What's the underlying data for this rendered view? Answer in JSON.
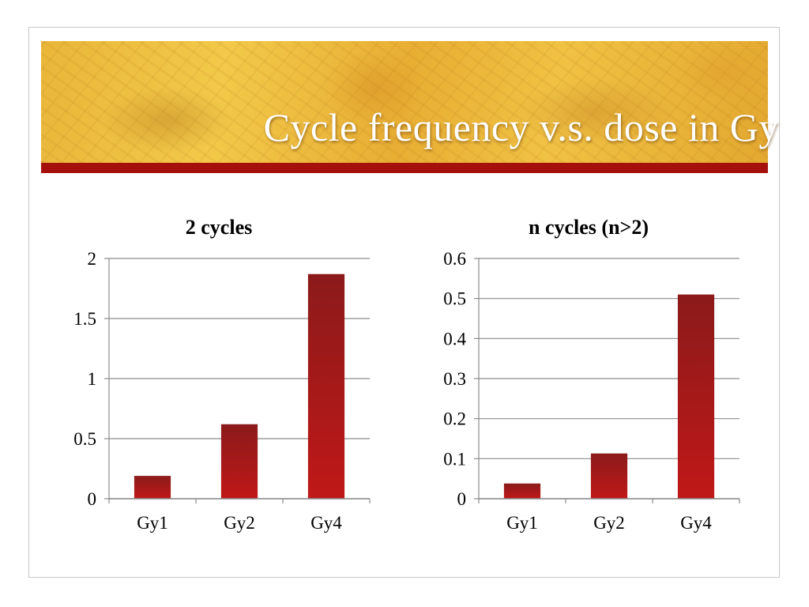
{
  "slide": {
    "title": "Cycle frequency v.s. dose in Gy"
  },
  "colors": {
    "bar_top": "#8b1a1a",
    "bar_bottom": "#c01818",
    "banner_bar": "#a6100c",
    "grid": "#8c8c8c"
  },
  "chart_data": [
    {
      "type": "bar",
      "title": "2 cycles",
      "categories": [
        "Gy1",
        "Gy2",
        "Gy4"
      ],
      "values": [
        0.19,
        0.62,
        1.87
      ],
      "ylim": [
        0,
        2
      ],
      "yticks": [
        0,
        0.5,
        1,
        1.5,
        2
      ],
      "ytick_labels": [
        "0",
        "0.5",
        "1",
        "1.5",
        "2"
      ],
      "grid": true,
      "legend": "none"
    },
    {
      "type": "bar",
      "title": "n cycles (n>2)",
      "categories": [
        "Gy1",
        "Gy2",
        "Gy4"
      ],
      "values": [
        0.038,
        0.113,
        0.51
      ],
      "ylim": [
        0,
        0.6
      ],
      "yticks": [
        0,
        0.1,
        0.2,
        0.3,
        0.4,
        0.5,
        0.6
      ],
      "ytick_labels": [
        "0",
        "0.1",
        "0.2",
        "0.3",
        "0.4",
        "0.5",
        "0.6"
      ],
      "grid": true,
      "legend": "none"
    }
  ]
}
